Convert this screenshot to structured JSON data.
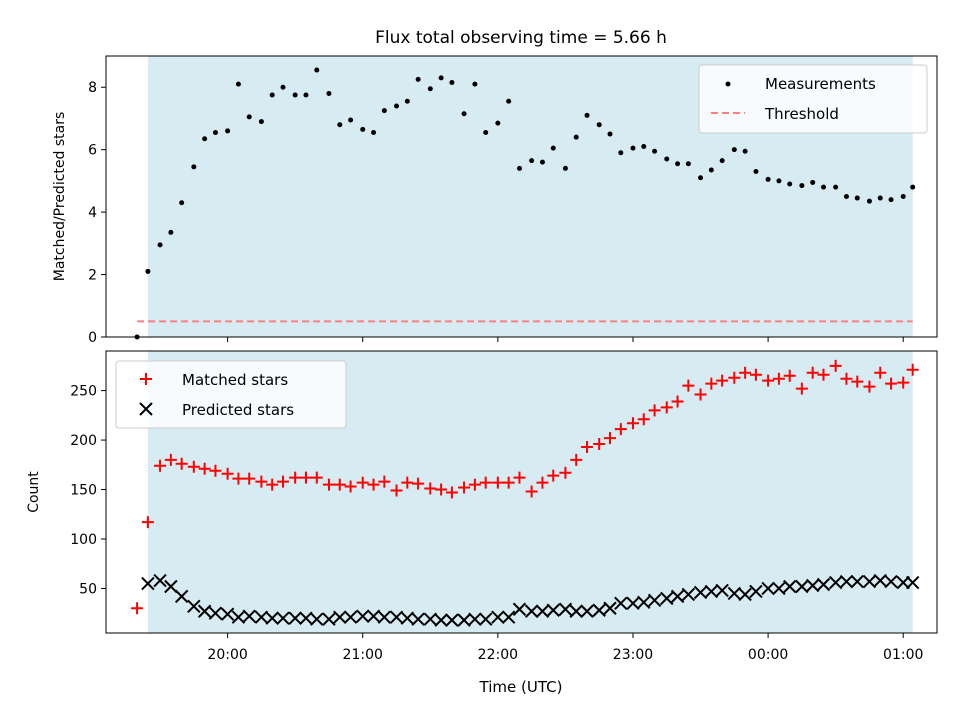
{
  "figure": {
    "title": "Flux total observing time = 5.66 h",
    "xlabel": "Time (UTC)",
    "xticks": [
      "20:00",
      "21:00",
      "22:00",
      "23:00",
      "00:00",
      "01:00"
    ],
    "colors": {
      "shade": "#add8e6",
      "measurement": "#000000",
      "threshold": "#ff7f7f",
      "matched": "#ff0000",
      "predicted": "#000000"
    }
  },
  "chart_data": [
    {
      "type": "scatter",
      "panel": "top",
      "ylabel": "Matched/Predicted stars",
      "ylim": [
        0,
        9
      ],
      "yticks": [
        0,
        2,
        4,
        6,
        8
      ],
      "x_axis": "time UTC (hours, 24+ = next day)",
      "xlim": [
        19.1,
        25.25
      ],
      "shaded_range": [
        19.41,
        25.07
      ],
      "legend": {
        "position": "top-right",
        "entries": [
          "Measurements",
          "Threshold"
        ]
      },
      "threshold": {
        "name": "Threshold",
        "y": 0.5,
        "x": [
          19.33,
          25.07
        ]
      },
      "series": [
        {
          "name": "Measurements",
          "x": [
            19.33,
            19.41,
            19.5,
            19.58,
            19.66,
            19.75,
            19.83,
            19.91,
            20.0,
            20.08,
            20.16,
            20.25,
            20.33,
            20.41,
            20.5,
            20.58,
            20.66,
            20.75,
            20.83,
            20.91,
            21.0,
            21.08,
            21.16,
            21.25,
            21.33,
            21.41,
            21.5,
            21.58,
            21.66,
            21.75,
            21.83,
            21.91,
            22.0,
            22.08,
            22.16,
            22.25,
            22.33,
            22.41,
            22.5,
            22.58,
            22.66,
            22.75,
            22.83,
            22.91,
            23.0,
            23.08,
            23.16,
            23.25,
            23.33,
            23.41,
            23.5,
            23.58,
            23.66,
            23.75,
            23.83,
            23.91,
            24.0,
            24.08,
            24.16,
            24.25,
            24.33,
            24.41,
            24.5,
            24.58,
            24.66,
            24.75,
            24.83,
            24.91,
            25.0,
            25.07
          ],
          "y": [
            0.0,
            2.1,
            2.95,
            3.35,
            4.3,
            5.45,
            6.35,
            6.55,
            6.6,
            8.1,
            7.05,
            6.9,
            7.75,
            8.0,
            7.75,
            7.75,
            8.55,
            7.8,
            6.8,
            6.95,
            6.65,
            6.55,
            7.25,
            7.4,
            7.55,
            8.25,
            7.95,
            8.3,
            8.15,
            7.15,
            8.1,
            6.55,
            6.85,
            7.55,
            5.4,
            5.65,
            5.6,
            6.05,
            5.4,
            6.4,
            7.1,
            6.8,
            6.5,
            5.9,
            6.05,
            6.1,
            5.95,
            5.7,
            5.55,
            5.55,
            5.1,
            5.35,
            5.65,
            6.0,
            5.95,
            5.3,
            5.05,
            5.0,
            4.9,
            4.85,
            4.95,
            4.8,
            4.8,
            4.5,
            4.45,
            4.35,
            4.45,
            4.4,
            4.5,
            4.8
          ]
        }
      ]
    },
    {
      "type": "scatter",
      "panel": "bottom",
      "ylabel": "Count",
      "ylim": [
        5,
        290
      ],
      "yticks": [
        50,
        100,
        150,
        200,
        250
      ],
      "x_axis": "time UTC (hours, 24+ = next day)",
      "xlim": [
        19.1,
        25.25
      ],
      "shaded_range": [
        19.41,
        25.07
      ],
      "legend": {
        "position": "top-left",
        "entries": [
          "Matched stars",
          "Predicted stars"
        ]
      },
      "series": [
        {
          "name": "Matched stars",
          "marker": "+",
          "x": [
            19.33,
            19.41,
            19.5,
            19.58,
            19.66,
            19.75,
            19.83,
            19.91,
            20.0,
            20.08,
            20.16,
            20.25,
            20.33,
            20.41,
            20.5,
            20.58,
            20.66,
            20.75,
            20.83,
            20.91,
            21.0,
            21.08,
            21.16,
            21.25,
            21.33,
            21.41,
            21.5,
            21.58,
            21.66,
            21.75,
            21.83,
            21.91,
            22.0,
            22.08,
            22.16,
            22.25,
            22.33,
            22.41,
            22.5,
            22.58,
            22.66,
            22.75,
            22.83,
            22.91,
            23.0,
            23.08,
            23.16,
            23.25,
            23.33,
            23.41,
            23.5,
            23.58,
            23.66,
            23.75,
            23.83,
            23.91,
            24.0,
            24.08,
            24.16,
            24.25,
            24.33,
            24.41,
            24.5,
            24.58,
            24.66,
            24.75,
            24.83,
            24.91,
            25.0,
            25.07
          ],
          "y": [
            30,
            117,
            174,
            180,
            176,
            173,
            171,
            169,
            166,
            161,
            161,
            158,
            155,
            158,
            162,
            162,
            162,
            155,
            155,
            153,
            157,
            155,
            158,
            149,
            157,
            156,
            151,
            150,
            147,
            152,
            155,
            157,
            157,
            157,
            162,
            148,
            157,
            164,
            167,
            180,
            193,
            196,
            202,
            211,
            217,
            221,
            230,
            233,
            239,
            255,
            246,
            257,
            260,
            263,
            268,
            266,
            260,
            262,
            265,
            252,
            268,
            266,
            275,
            262,
            259,
            254,
            268,
            257,
            258,
            271
          ]
        },
        {
          "name": "Predicted stars",
          "marker": "x",
          "x": [
            19.41,
            19.5,
            19.58,
            19.66,
            19.75,
            19.83,
            19.91,
            20.0,
            20.08,
            20.16,
            20.25,
            20.33,
            20.41,
            20.5,
            20.58,
            20.66,
            20.75,
            20.83,
            20.91,
            21.0,
            21.08,
            21.16,
            21.25,
            21.33,
            21.41,
            21.5,
            21.58,
            21.66,
            21.75,
            21.83,
            21.91,
            22.0,
            22.08,
            22.16,
            22.25,
            22.33,
            22.41,
            22.5,
            22.58,
            22.66,
            22.75,
            22.83,
            22.91,
            23.0,
            23.08,
            23.16,
            23.25,
            23.33,
            23.41,
            23.5,
            23.58,
            23.66,
            23.75,
            23.83,
            23.91,
            24.0,
            24.08,
            24.16,
            24.25,
            24.33,
            24.41,
            24.5,
            24.58,
            24.66,
            24.75,
            24.83,
            24.91,
            25.0,
            25.07
          ],
          "y": [
            55,
            58,
            52,
            42,
            32,
            27,
            25,
            24,
            21,
            22,
            21,
            20,
            20,
            20,
            20,
            19,
            19,
            21,
            21,
            22,
            22,
            21,
            21,
            20,
            19,
            19,
            18,
            18,
            18,
            19,
            19,
            21,
            21,
            29,
            27,
            27,
            28,
            29,
            27,
            27,
            28,
            30,
            35,
            35,
            36,
            38,
            40,
            42,
            44,
            46,
            47,
            48,
            45,
            44,
            47,
            50,
            50,
            52,
            52,
            53,
            54,
            56,
            57,
            57,
            57,
            58,
            57,
            56,
            56
          ]
        }
      ]
    }
  ]
}
